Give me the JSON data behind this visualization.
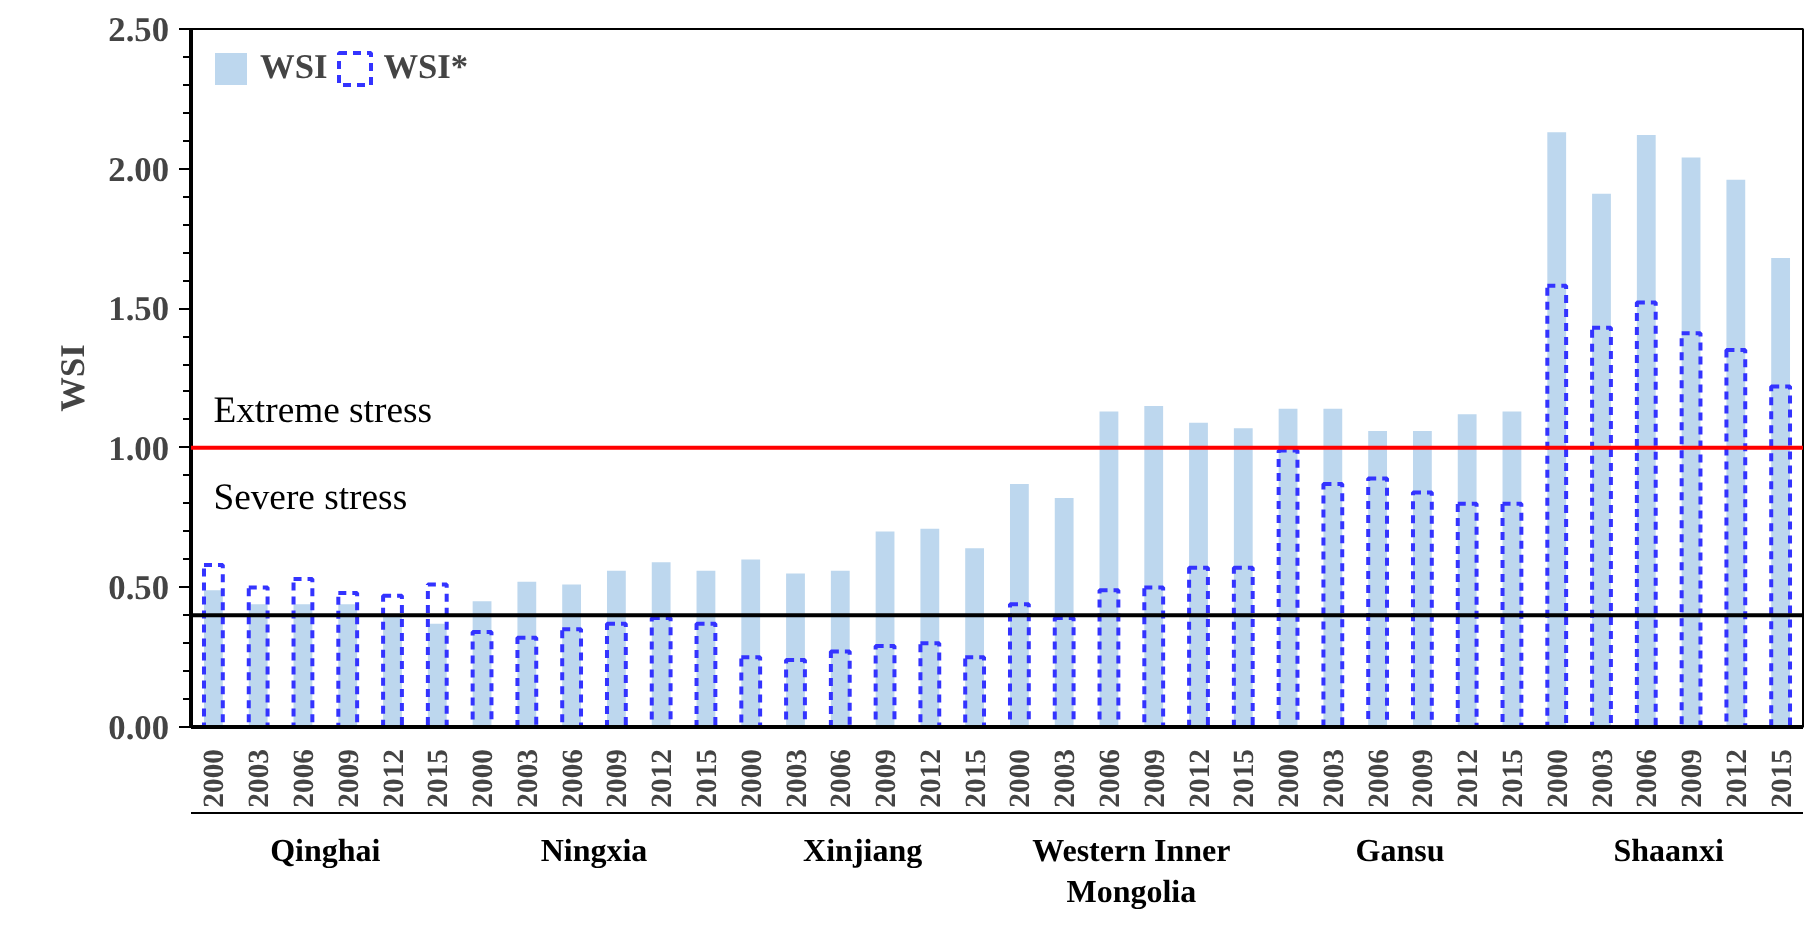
{
  "chart_data": {
    "type": "bar",
    "ylabel": "WSI",
    "categories": [
      "2000",
      "2003",
      "2006",
      "2009",
      "2012",
      "2015",
      "2000",
      "2003",
      "2006",
      "2009",
      "2012",
      "2015",
      "2000",
      "2003",
      "2006",
      "2009",
      "2012",
      "2015",
      "2000",
      "2003",
      "2006",
      "2009",
      "2012",
      "2015",
      "2000",
      "2003",
      "2006",
      "2009",
      "2012",
      "2015",
      "2000",
      "2003",
      "2006",
      "2009",
      "2012",
      "2015"
    ],
    "series": [
      {
        "name": "WSI",
        "color": "#bdd7ee",
        "values": [
          0.49,
          0.44,
          0.44,
          0.44,
          0.4,
          0.37,
          0.45,
          0.52,
          0.51,
          0.56,
          0.59,
          0.56,
          0.6,
          0.55,
          0.56,
          0.7,
          0.71,
          0.64,
          0.87,
          0.82,
          1.13,
          1.15,
          1.09,
          1.07,
          1.14,
          1.14,
          1.06,
          1.06,
          1.12,
          1.13,
          2.13,
          1.91,
          2.12,
          2.04,
          1.96,
          1.68
        ]
      },
      {
        "name": "WSI*",
        "color": "#3333ff",
        "line_style": "dashed",
        "values": [
          0.58,
          0.5,
          0.53,
          0.48,
          0.47,
          0.51,
          0.34,
          0.32,
          0.35,
          0.37,
          0.39,
          0.37,
          0.25,
          0.24,
          0.27,
          0.29,
          0.3,
          0.25,
          0.44,
          0.39,
          0.49,
          0.5,
          0.57,
          0.57,
          0.99,
          0.87,
          0.89,
          0.84,
          0.8,
          0.8,
          1.58,
          1.43,
          1.52,
          1.41,
          1.35,
          1.22
        ]
      }
    ],
    "ylim": [
      0,
      2.5
    ],
    "yticks": [
      {
        "value": 0,
        "label": "0.00"
      },
      {
        "value": 0.5,
        "label": "0.50"
      },
      {
        "value": 1,
        "label": "1.00"
      },
      {
        "value": 1.5,
        "label": "1.50"
      },
      {
        "value": 2,
        "label": "2.00"
      },
      {
        "value": 2.5,
        "label": "2.50"
      }
    ],
    "ref_lines": [
      {
        "axis": "y",
        "value": 1.0,
        "label": "Extreme stress",
        "color": "#ff0000"
      },
      {
        "axis": "y",
        "value": 0.4,
        "label": "Severe stress",
        "color": "#000000"
      }
    ],
    "annotations": [
      "Qinghai",
      "Ningxia",
      "Xinjiang",
      "Western Inner\nMongolia",
      "Gansu",
      "Shaanxi"
    ],
    "legend": "top left",
    "grid": false
  }
}
